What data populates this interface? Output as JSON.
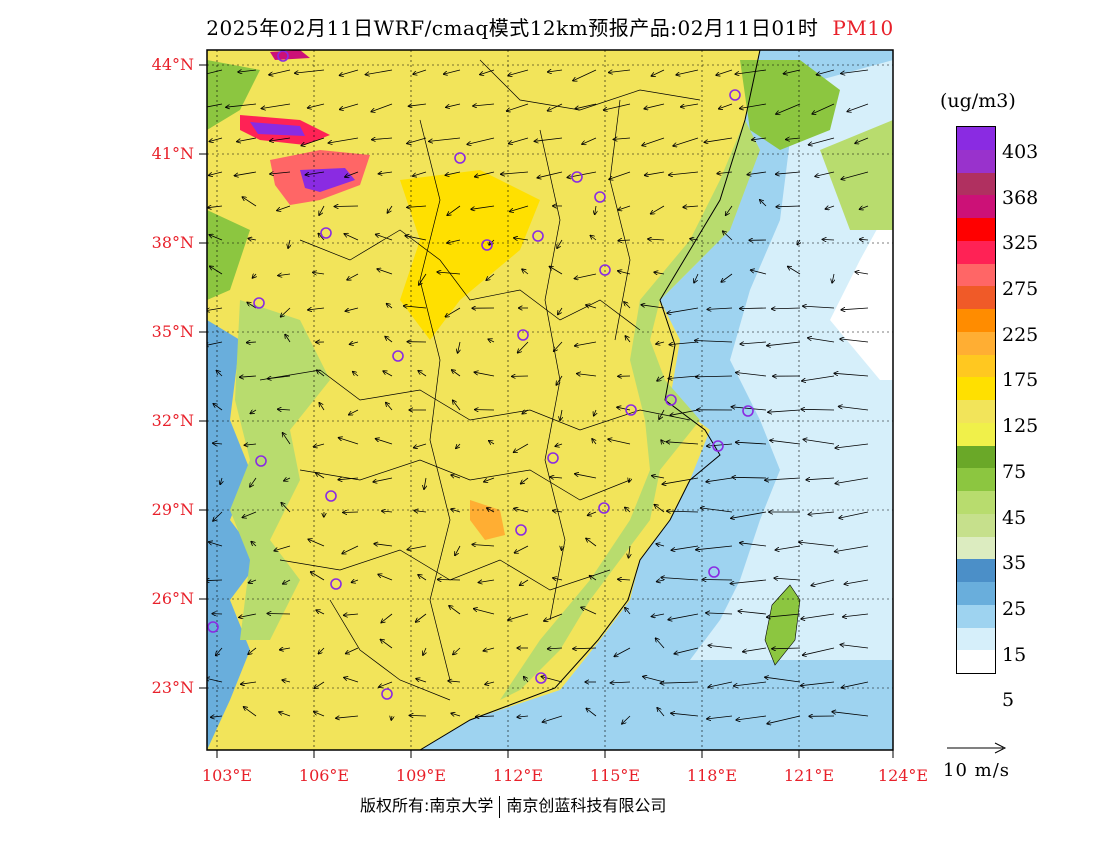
{
  "title": {
    "main": "2025年02月11日WRF/cmaq模式12km预报产品:02月11日01时",
    "pollutant": "PM10"
  },
  "map": {
    "lat_labels": [
      "44°N",
      "41°N",
      "38°N",
      "35°N",
      "32°N",
      "29°N",
      "26°N",
      "23°N"
    ],
    "lon_labels": [
      "103°E",
      "106°E",
      "109°E",
      "112°E",
      "115°E",
      "118°E",
      "121°E",
      "124°E"
    ]
  },
  "legend": {
    "unit": "(ug/m3)",
    "ticks": [
      "403",
      "368",
      "325",
      "275",
      "225",
      "175",
      "125",
      "75",
      "45",
      "35",
      "25",
      "15",
      "5"
    ],
    "colors": [
      "#8a2be2",
      "#9932cc",
      "#b03060",
      "#cc1177",
      "#ff0000",
      "#ff2255",
      "#ff6666",
      "#f05a28",
      "#ff8c00",
      "#ffae33",
      "#ffc820",
      "#ffe000",
      "#f2e45a",
      "#f0f04a",
      "#6aa828",
      "#8cc640",
      "#b8dc6e",
      "#c6e08c",
      "#dcecc0",
      "#4b8fc8",
      "#69aedc",
      "#9ed3f0",
      "#d6effa",
      "#ffffff"
    ]
  },
  "wind": {
    "reference_label": "10 m/s"
  },
  "footer": {
    "left": "版权所有:南京大学",
    "right": "南京创蓝科技有限公司"
  },
  "colors": {
    "label_red": "#e8202a",
    "sea_light": "#d6effa",
    "land_yellow": "#f2e45a",
    "station_ring": "#8a2be2"
  }
}
